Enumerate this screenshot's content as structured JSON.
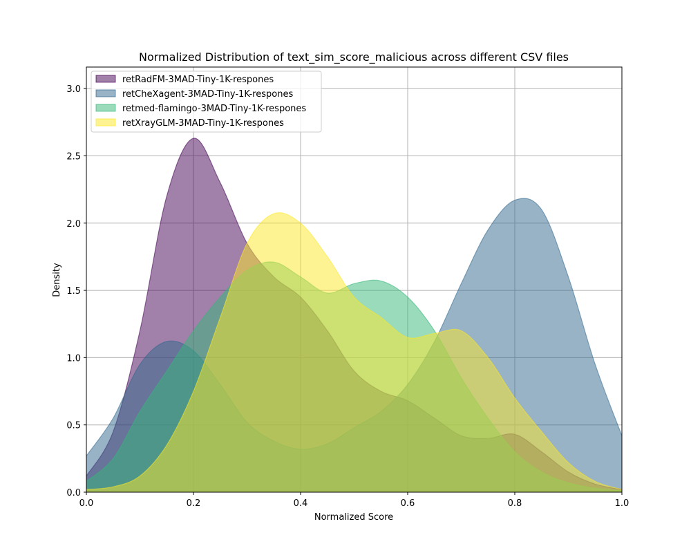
{
  "chart_data": {
    "type": "area",
    "title": "Normalized Distribution of text_sim_score_malicious across different CSV files",
    "xlabel": "Normalized Score",
    "ylabel": "Density",
    "xlim": [
      0.0,
      1.0
    ],
    "ylim": [
      0.0,
      3.16
    ],
    "xticks": [
      "0.0",
      "0.2",
      "0.4",
      "0.6",
      "0.8",
      "1.0"
    ],
    "yticks": [
      "0.0",
      "0.5",
      "1.0",
      "1.5",
      "2.0",
      "2.5",
      "3.0"
    ],
    "grid": true,
    "legend_position": "top-left",
    "x": [
      0.0,
      0.05,
      0.1,
      0.15,
      0.2,
      0.25,
      0.3,
      0.35,
      0.4,
      0.45,
      0.5,
      0.55,
      0.6,
      0.65,
      0.7,
      0.75,
      0.8,
      0.85,
      0.9,
      0.95,
      1.0
    ],
    "series": [
      {
        "name": "retRadFM-3MAD-Tiny-1K-respones",
        "color": "#440154",
        "values": [
          0.12,
          0.45,
          1.2,
          2.2,
          2.63,
          2.3,
          1.85,
          1.6,
          1.45,
          1.2,
          0.9,
          0.75,
          0.68,
          0.55,
          0.42,
          0.4,
          0.43,
          0.3,
          0.15,
          0.06,
          0.02
        ]
      },
      {
        "name": "retCheXagent-3MAD-Tiny-1K-respones",
        "color": "#31688e",
        "values": [
          0.27,
          0.55,
          0.95,
          1.12,
          1.05,
          0.8,
          0.52,
          0.38,
          0.32,
          0.36,
          0.48,
          0.6,
          0.8,
          1.12,
          1.55,
          1.95,
          2.17,
          2.1,
          1.6,
          0.95,
          0.42
        ]
      },
      {
        "name": "retmed-flamingo-3MAD-Tiny-1K-respones",
        "color": "#35b779",
        "values": [
          0.08,
          0.25,
          0.6,
          0.9,
          1.2,
          1.45,
          1.65,
          1.71,
          1.6,
          1.48,
          1.55,
          1.57,
          1.45,
          1.2,
          0.85,
          0.55,
          0.3,
          0.15,
          0.07,
          0.03,
          0.01
        ]
      },
      {
        "name": "retXrayGLM-3MAD-Tiny-1K-respones",
        "color": "#fde725",
        "values": [
          0.02,
          0.04,
          0.12,
          0.35,
          0.75,
          1.3,
          1.85,
          2.07,
          2.0,
          1.75,
          1.45,
          1.3,
          1.15,
          1.18,
          1.2,
          1.0,
          0.7,
          0.45,
          0.22,
          0.08,
          0.02
        ]
      }
    ]
  }
}
